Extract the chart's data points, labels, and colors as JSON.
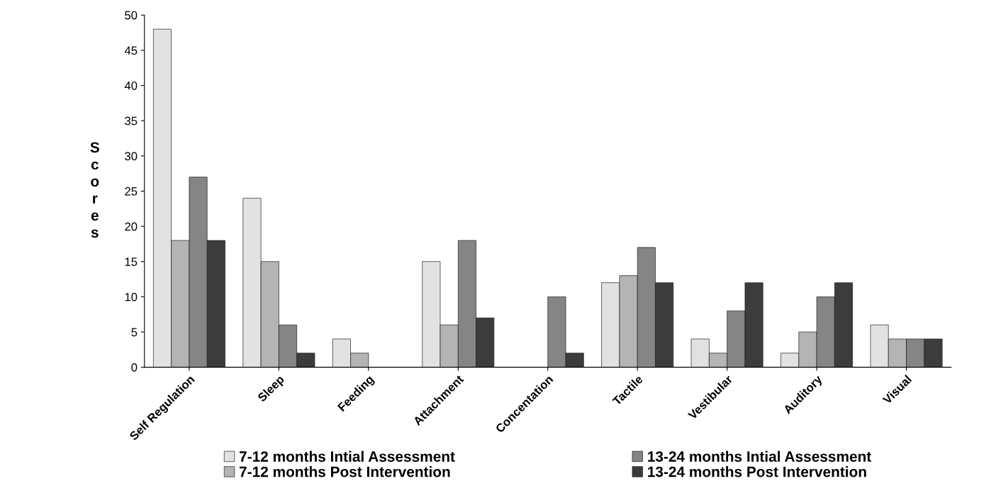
{
  "chart_data": {
    "type": "bar",
    "ylabel": "Scores",
    "categories": [
      "Self Regulation",
      "Sleep",
      "Feeding",
      "Attachment",
      "Concentation",
      "Tactile",
      "Vestibular",
      "Auditory",
      "Visual"
    ],
    "series": [
      {
        "name": "7-12 months Intial Assessment",
        "color": "#e2e2e2",
        "values": [
          48,
          24,
          4,
          15,
          0,
          12,
          4,
          2,
          6
        ]
      },
      {
        "name": "7-12 months Post Intervention",
        "color": "#b4b4b4",
        "values": [
          18,
          15,
          2,
          6,
          0,
          13,
          2,
          5,
          4
        ]
      },
      {
        "name": "13-24 months Intial Assessment",
        "color": "#858585",
        "values": [
          27,
          6,
          0,
          18,
          10,
          17,
          8,
          10,
          4
        ]
      },
      {
        "name": "13-24 months Post Intervention",
        "color": "#3c3c3c",
        "values": [
          18,
          2,
          0,
          7,
          2,
          12,
          12,
          12,
          4
        ]
      }
    ],
    "ylim": [
      0,
      50
    ],
    "yticks": [
      0,
      5,
      10,
      15,
      20,
      25,
      30,
      35,
      40,
      45,
      50
    ],
    "grid": false,
    "legend": "bottom"
  }
}
